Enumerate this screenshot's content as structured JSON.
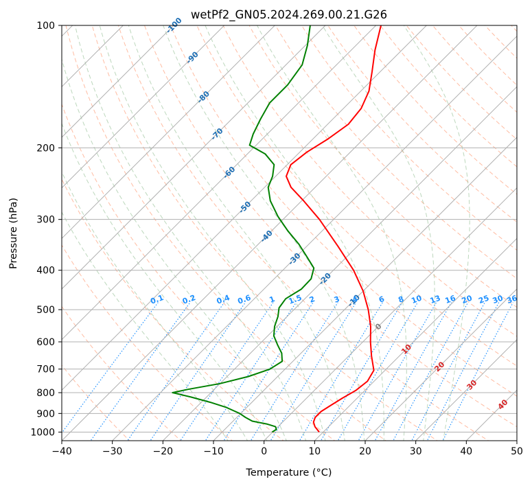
{
  "colors": {
    "temperature": "#ff0000",
    "dewpoint": "#008000",
    "isotherm": "#b0b0b0",
    "isobar_grid": "#b0b0b0",
    "dry_adiabat": "#ffa07a",
    "moist_adiabat": "#8fbc8f",
    "mixing_ratio": "#1e90ff",
    "isotherm_label": "#1f6fb4",
    "mixing_label": "#1e90ff",
    "red_label": "#d62728",
    "gray_label": "#808080"
  },
  "chart_data": {
    "type": "line",
    "subtype": "skew-T log-P diagram",
    "title": "wetPf2_GN05.2024.269.00.21.G26",
    "xlabel": "Temperature (°C)",
    "ylabel": "Pressure (hPa)",
    "xlim": [
      -40,
      50
    ],
    "ylim": [
      1050,
      100
    ],
    "y_scale": "log",
    "x_ticks": [
      -40,
      -30,
      -20,
      -10,
      0,
      10,
      20,
      30,
      40,
      50
    ],
    "x_tick_labels": [
      "−40",
      "−30",
      "−20",
      "−10",
      "0",
      "10",
      "20",
      "30",
      "40",
      "50"
    ],
    "y_ticks": [
      1000,
      900,
      800,
      700,
      600,
      500,
      400,
      300,
      200,
      100
    ],
    "y_tick_labels": [
      "1000",
      "900",
      "800",
      "700",
      "600",
      "500",
      "400",
      "300",
      "200",
      "100"
    ],
    "grid": true,
    "series": [
      {
        "key": "temperature",
        "points": [
          {
            "p": 1000,
            "t": 9.2
          },
          {
            "p": 970,
            "t": 7.3
          },
          {
            "p": 945,
            "t": 6.1
          },
          {
            "p": 920,
            "t": 5.5
          },
          {
            "p": 890,
            "t": 5.5
          },
          {
            "p": 860,
            "t": 6.2
          },
          {
            "p": 825,
            "t": 7.1
          },
          {
            "p": 790,
            "t": 8.2
          },
          {
            "p": 750,
            "t": 8.7
          },
          {
            "p": 705,
            "t": 7.8
          },
          {
            "p": 650,
            "t": 4.5
          },
          {
            "p": 600,
            "t": 1.5
          },
          {
            "p": 550,
            "t": -1.5
          },
          {
            "p": 500,
            "t": -5.3
          },
          {
            "p": 450,
            "t": -10.0
          },
          {
            "p": 400,
            "t": -16.0
          },
          {
            "p": 350,
            "t": -23.7
          },
          {
            "p": 300,
            "t": -32.8
          },
          {
            "p": 270,
            "t": -39.6
          },
          {
            "p": 250,
            "t": -44.8
          },
          {
            "p": 235,
            "t": -47.9
          },
          {
            "p": 220,
            "t": -49.3
          },
          {
            "p": 205,
            "t": -48.6
          },
          {
            "p": 190,
            "t": -47.0
          },
          {
            "p": 175,
            "t": -45.9
          },
          {
            "p": 160,
            "t": -46.5
          },
          {
            "p": 145,
            "t": -48.4
          },
          {
            "p": 130,
            "t": -51.6
          },
          {
            "p": 115,
            "t": -55.3
          },
          {
            "p": 100,
            "t": -59.0
          }
        ]
      },
      {
        "key": "dewpoint",
        "points": [
          {
            "p": 1000,
            "t": -0.1
          },
          {
            "p": 985,
            "t": 0.2
          },
          {
            "p": 970,
            "t": -0.5
          },
          {
            "p": 955,
            "t": -2.8
          },
          {
            "p": 940,
            "t": -6.2
          },
          {
            "p": 920,
            "t": -8.3
          },
          {
            "p": 900,
            "t": -10.2
          },
          {
            "p": 870,
            "t": -14.0
          },
          {
            "p": 845,
            "t": -18.2
          },
          {
            "p": 820,
            "t": -23.1
          },
          {
            "p": 800,
            "t": -27.6
          },
          {
            "p": 785,
            "t": -25.2
          },
          {
            "p": 760,
            "t": -20.0
          },
          {
            "p": 730,
            "t": -15.8
          },
          {
            "p": 700,
            "t": -13.0
          },
          {
            "p": 670,
            "t": -12.1
          },
          {
            "p": 640,
            "t": -13.8
          },
          {
            "p": 610,
            "t": -16.3
          },
          {
            "p": 580,
            "t": -18.8
          },
          {
            "p": 550,
            "t": -20.5
          },
          {
            "p": 520,
            "t": -21.8
          },
          {
            "p": 495,
            "t": -23.3
          },
          {
            "p": 470,
            "t": -23.8
          },
          {
            "p": 445,
            "t": -22.6
          },
          {
            "p": 420,
            "t": -22.7
          },
          {
            "p": 395,
            "t": -24.3
          },
          {
            "p": 370,
            "t": -28.0
          },
          {
            "p": 345,
            "t": -32.0
          },
          {
            "p": 320,
            "t": -36.8
          },
          {
            "p": 295,
            "t": -41.6
          },
          {
            "p": 270,
            "t": -46.2
          },
          {
            "p": 250,
            "t": -49.3
          },
          {
            "p": 235,
            "t": -50.6
          },
          {
            "p": 220,
            "t": -52.6
          },
          {
            "p": 207,
            "t": -56.5
          },
          {
            "p": 197,
            "t": -61.3
          },
          {
            "p": 185,
            "t": -62.8
          },
          {
            "p": 170,
            "t": -64.3
          },
          {
            "p": 155,
            "t": -65.7
          },
          {
            "p": 140,
            "t": -65.7
          },
          {
            "p": 125,
            "t": -66.8
          },
          {
            "p": 112,
            "t": -69.6
          },
          {
            "p": 100,
            "t": -73.0
          }
        ]
      }
    ],
    "isotherm_labels": [
      "-100",
      "-90",
      "-80",
      "-70",
      "-60",
      "-50",
      "-40",
      "-30",
      "-20",
      "-10",
      "0",
      "10",
      "20",
      "30",
      "40"
    ],
    "isotherm_label_values": [
      -100,
      -90,
      -80,
      -70,
      -60,
      -50,
      -40,
      -30,
      -20,
      -10,
      0,
      10,
      20,
      30,
      40
    ],
    "isotherm_label_pressures": [
      100,
      120,
      150,
      185,
      230,
      280,
      330,
      375,
      420,
      475,
      550,
      625,
      690,
      765,
      855
    ],
    "mixing_ratio_labels": [
      "0.1",
      "0.2",
      "0.4",
      "0.6",
      "1",
      "1.5",
      "2",
      "3",
      "4",
      "6",
      "8",
      "10",
      "13",
      "16",
      "20",
      "25",
      "30",
      "36"
    ],
    "mixing_ratio_values": [
      0.1,
      0.2,
      0.4,
      0.6,
      1,
      1.5,
      2,
      3,
      4,
      6,
      8,
      10,
      13,
      16,
      20,
      25,
      30,
      36
    ],
    "mixing_ratio_label_pressure": 480
  }
}
